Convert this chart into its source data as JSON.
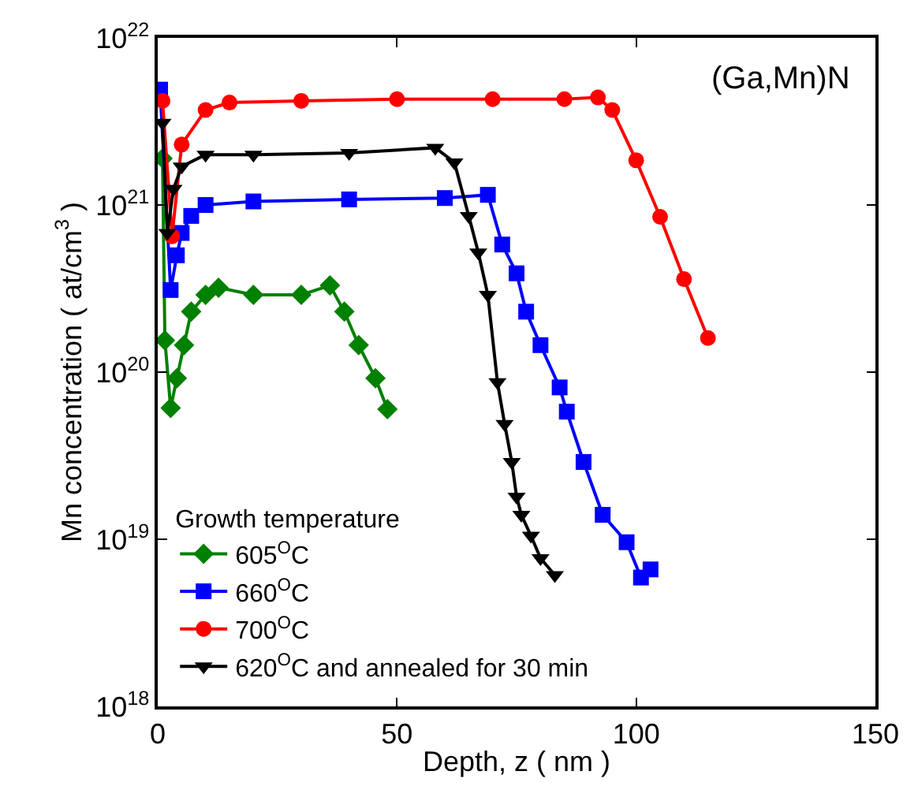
{
  "chart_data": {
    "type": "line",
    "xlabel": "Depth, z ( nm )",
    "ylabel": "Mn concentration ( at/cm$^{3}$ )",
    "legend_title": "Growth temperature",
    "annotations": [
      "(Ga,Mn)N"
    ],
    "xlim": [
      0,
      150
    ],
    "xticks": [
      0,
      50,
      100,
      150
    ],
    "ylim": [
      1e+18,
      1e+22
    ],
    "yticks": [
      {
        "value": 1e+18,
        "label": "10$^{18}$"
      },
      {
        "value": 1e+19,
        "label": "10$^{19}$"
      },
      {
        "value": 1e+20,
        "label": "10$^{20}$"
      },
      {
        "value": 1e+21,
        "label": "10$^{21}$"
      },
      {
        "value": 1e+22,
        "label": "10$^{22}$"
      }
    ],
    "log": "y",
    "legend": "bottom left",
    "line_style": "solid",
    "series": [
      {
        "name": "605$^{O}$C",
        "color": "#008000",
        "marker": "diamond",
        "x": [
          1,
          1.5,
          2.7,
          4,
          5.5,
          7,
          10,
          12.7,
          20,
          30,
          36,
          39,
          42,
          45.5,
          48
        ],
        "values": [
          1.9e+21,
          1.55e+20,
          6.1e+19,
          9.2e+19,
          1.45e+20,
          2.3e+20,
          2.9e+20,
          3.2e+20,
          2.9e+20,
          2.9e+20,
          3.3e+20,
          2.3e+20,
          1.45e+20,
          9.2e+19,
          6e+19
        ]
      },
      {
        "name": "660$^{O}$C",
        "color": "#0000ff",
        "marker": "square",
        "x": [
          0.5,
          2.7,
          4,
          5,
          7,
          10,
          20,
          40,
          60,
          69,
          72,
          75,
          77,
          80,
          84,
          85.5,
          89,
          93,
          98,
          101,
          103
        ],
        "values": [
          4.9e+21,
          3.1e+20,
          5e+20,
          6.8e+20,
          8.6e+20,
          1e+21,
          1.05e+21,
          1.08e+21,
          1.1e+21,
          1.15e+21,
          5.8e+20,
          3.9e+20,
          2.3e+20,
          1.45e+20,
          8.1e+19,
          5.8e+19,
          2.9e+19,
          1.4e+19,
          9.6e+18,
          5.9e+18,
          6.6e+18
        ]
      },
      {
        "name": "700$^{O}$C",
        "color": "#ff0000",
        "marker": "circle",
        "x": [
          1,
          3,
          5,
          10,
          15,
          30,
          50,
          70,
          85,
          92,
          95,
          100,
          105,
          110,
          115
        ],
        "values": [
          4.2e+21,
          6.5e+20,
          2.3e+21,
          3.7e+21,
          4.1e+21,
          4.2e+21,
          4.3e+21,
          4.3e+21,
          4.3e+21,
          4.4e+21,
          3.7e+21,
          1.85e+21,
          8.5e+20,
          3.6e+20,
          1.6e+20
        ]
      },
      {
        "name": "620$^{O}$C and annealed for 30 min",
        "color": "#000000",
        "marker": "triangle",
        "x": [
          1,
          2,
          3.3,
          5,
          10,
          20,
          40,
          58,
          62,
          65,
          67,
          69,
          71,
          72.5,
          74,
          75,
          76,
          78,
          80,
          83
        ],
        "values": [
          3.1e+21,
          6.8e+20,
          1.25e+21,
          1.7e+21,
          2e+21,
          2e+21,
          2.05e+21,
          2.2e+21,
          1.8e+21,
          8.6e+20,
          5.2e+20,
          2.9e+20,
          8.7e+19,
          4.9e+19,
          2.9e+19,
          1.8e+19,
          1.4e+19,
          1.05e+19,
          7.7e+18,
          6.1e+18
        ]
      }
    ]
  }
}
